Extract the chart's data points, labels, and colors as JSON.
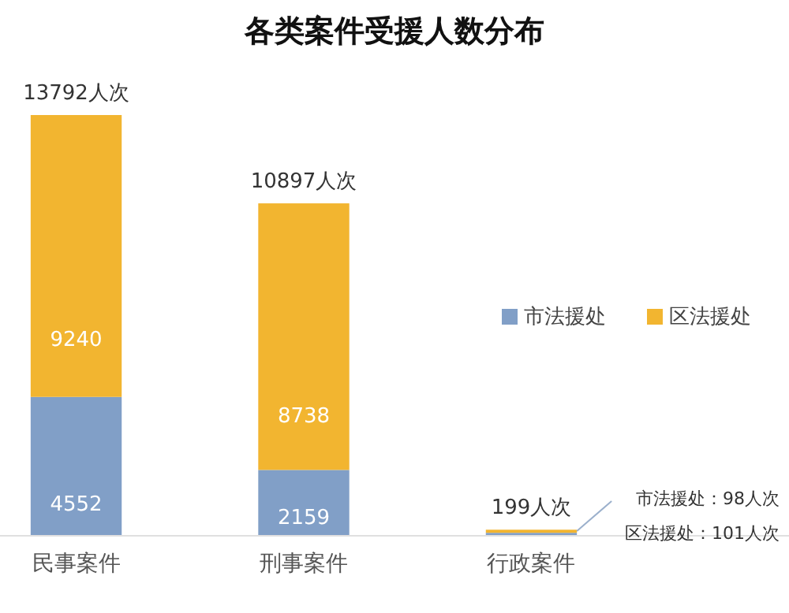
{
  "chart_data": {
    "type": "bar",
    "title": "各类案件受援人数分布",
    "categories": [
      "民事案件",
      "刑事案件",
      "行政案件"
    ],
    "stacked": true,
    "legend": "right",
    "series": [
      {
        "name": "市法援处",
        "color": "#819fc7",
        "values": [
          4552,
          2159,
          98
        ],
        "value_labels": [
          "4552",
          "2159",
          null
        ]
      },
      {
        "name": "区法援处",
        "color": "#f2b530",
        "values": [
          9240,
          8738,
          101
        ],
        "value_labels": [
          "9240",
          "8738",
          null
        ]
      }
    ],
    "totals": [
      "13792人次",
      "10897人次",
      "199人次"
    ],
    "annotations": [
      "市法援处：98人次",
      "区法援处：101人次"
    ]
  }
}
